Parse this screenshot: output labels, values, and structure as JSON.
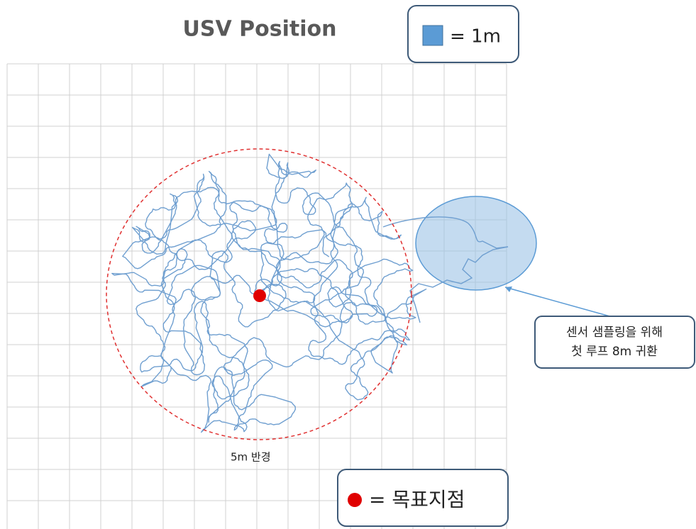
{
  "title": "USV Position",
  "legend": {
    "scale_label": "= 1m",
    "target_label": "= 목표지점"
  },
  "annotations": {
    "radius_label": "5m 반경"
  },
  "callout": {
    "lines": [
      "센서 샘플링을 위해",
      "첫 루프 8m  귀환"
    ]
  }
}
